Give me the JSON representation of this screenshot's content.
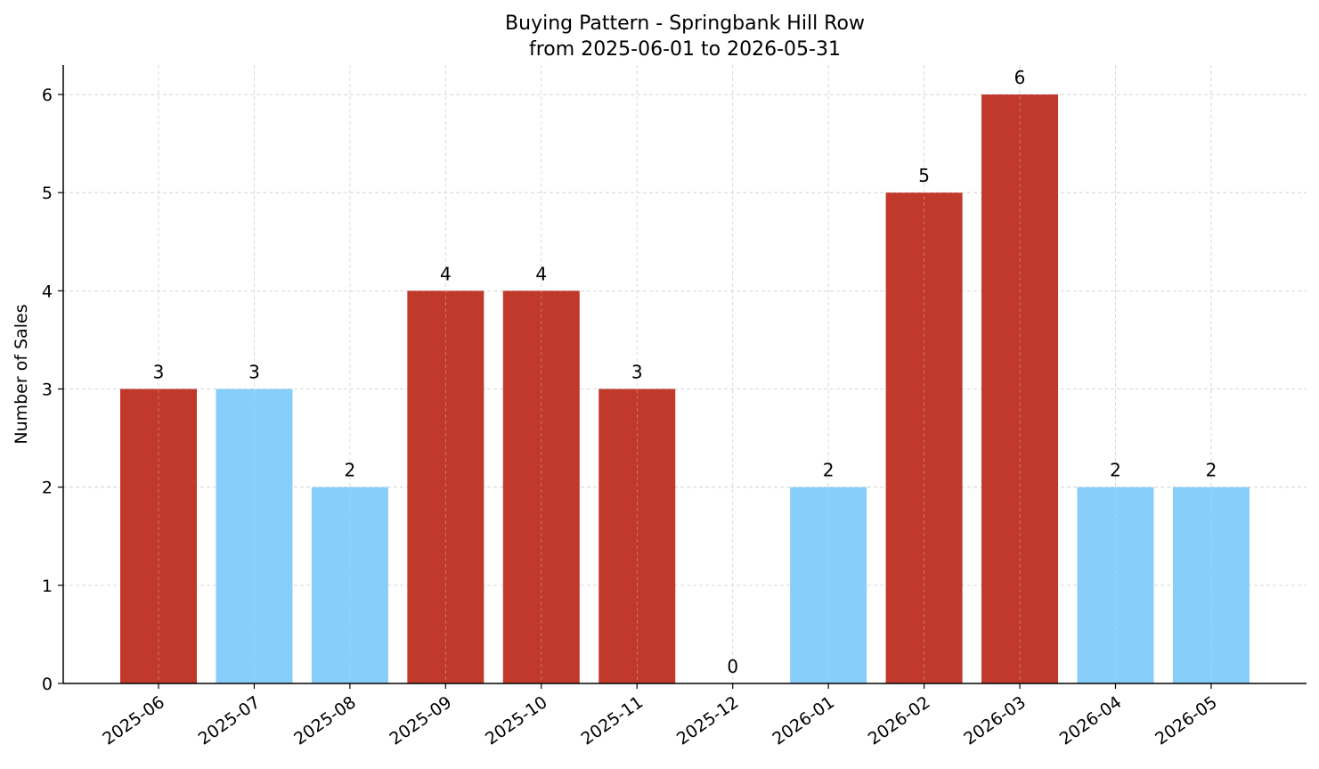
{
  "chart_data": {
    "type": "bar",
    "title": "Buying Pattern - Springbank Hill Row",
    "subtitle": "from 2025-06-01 to 2026-05-31",
    "xlabel": "",
    "ylabel": "Number of Sales",
    "categories": [
      "2025-06",
      "2025-07",
      "2025-08",
      "2025-09",
      "2025-10",
      "2025-11",
      "2025-12",
      "2026-01",
      "2026-02",
      "2026-03",
      "2026-04",
      "2026-05"
    ],
    "values": [
      3,
      3,
      2,
      4,
      4,
      3,
      0,
      2,
      5,
      6,
      2,
      2
    ],
    "bar_colors": [
      "#c0392b",
      "#87cefa",
      "#87cefa",
      "#c0392b",
      "#c0392b",
      "#c0392b",
      "#87cefa",
      "#87cefa",
      "#c0392b",
      "#c0392b",
      "#87cefa",
      "#87cefa"
    ],
    "ylim": [
      0,
      6.3
    ],
    "yticks": [
      0,
      1,
      2,
      3,
      4,
      5,
      6
    ],
    "grid": true,
    "x_tick_rotation_deg": 35
  }
}
